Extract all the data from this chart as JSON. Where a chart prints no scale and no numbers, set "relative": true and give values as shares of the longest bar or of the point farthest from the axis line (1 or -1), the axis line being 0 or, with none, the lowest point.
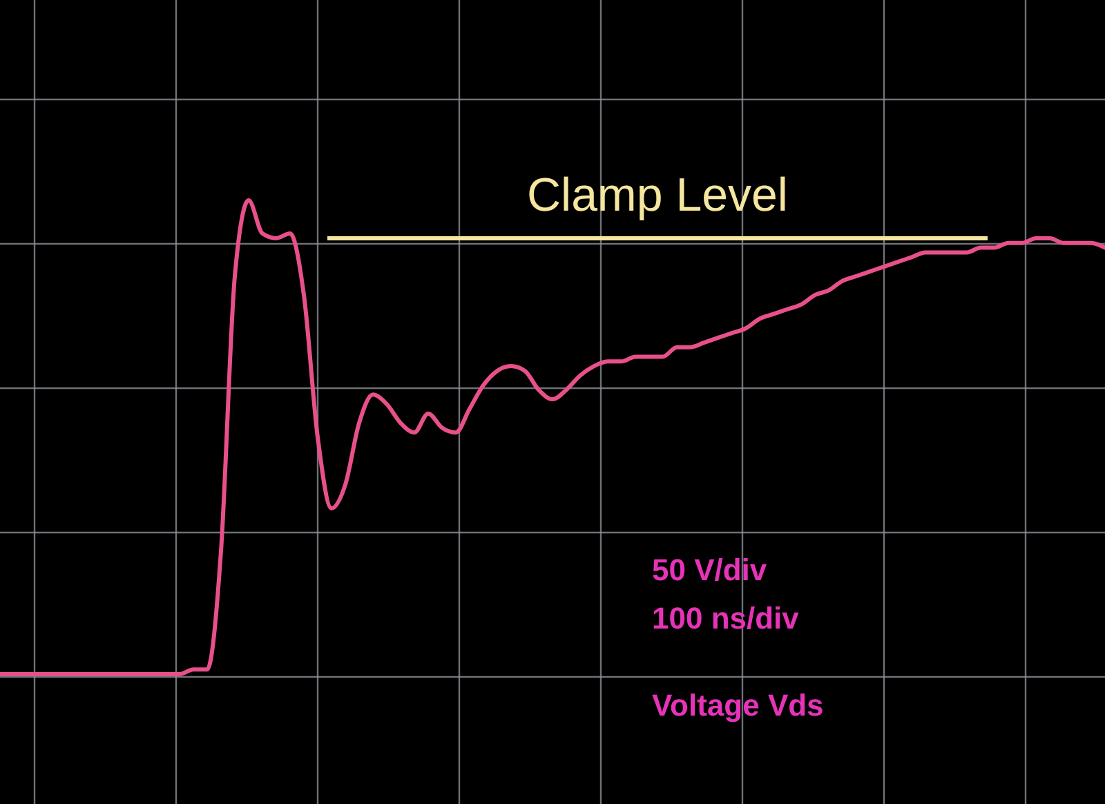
{
  "chart_data": {
    "type": "line",
    "relative": true,
    "grid": true,
    "categories": [
      null,
      null,
      null,
      null,
      null,
      null,
      null,
      null,
      null,
      null,
      null,
      null,
      null,
      null,
      null,
      null,
      null,
      null,
      null,
      null,
      null,
      null,
      null,
      null,
      null,
      null,
      null,
      null,
      null,
      null,
      null,
      null,
      null,
      null,
      null,
      null,
      null,
      null,
      null,
      null,
      null,
      null,
      null,
      null,
      null,
      null,
      null,
      null,
      null,
      null,
      null,
      null,
      null,
      null,
      null,
      null,
      null,
      null,
      null,
      null,
      null,
      null,
      null,
      null,
      null,
      null,
      null,
      null,
      null,
      null,
      null,
      null,
      null,
      null,
      null,
      null,
      null,
      null,
      null,
      null,
      null
    ],
    "series": [
      {
        "color": "#e8508a",
        "values": [
          0,
          0,
          0,
          0,
          0,
          0,
          0,
          0,
          0,
          0,
          0,
          0,
          0,
          0,
          0.01,
          0.01,
          0.26,
          0.84,
          1,
          0.93,
          0.92,
          0.93,
          0.8,
          0.5,
          0.35,
          0.4,
          0.53,
          0.59,
          0.57,
          0.53,
          0.51,
          0.55,
          0.52,
          0.51,
          0.56,
          0.61,
          0.64,
          0.65,
          0.64,
          0.6,
          0.58,
          0.6,
          0.63,
          0.65,
          0.66,
          0.66,
          0.67,
          0.67,
          0.67,
          0.69,
          0.69,
          0.7,
          0.71,
          0.72,
          0.73,
          0.75,
          0.76,
          0.77,
          0.78,
          0.8,
          0.81,
          0.83,
          0.84,
          0.85,
          0.86,
          0.87,
          0.88,
          0.89,
          0.89,
          0.89,
          0.89,
          0.9,
          0.9,
          0.91,
          0.91,
          0.92,
          0.92,
          0.91,
          0.91,
          0.91,
          0.9
        ]
      }
    ],
    "ref_lines": [
      {
        "axis": "y",
        "value": 0.92,
        "label": "Clamp Level",
        "color": "#f5e6a0"
      }
    ],
    "annotations": [
      "50 V/div",
      "100 ns/div",
      "Voltage Vds"
    ]
  }
}
